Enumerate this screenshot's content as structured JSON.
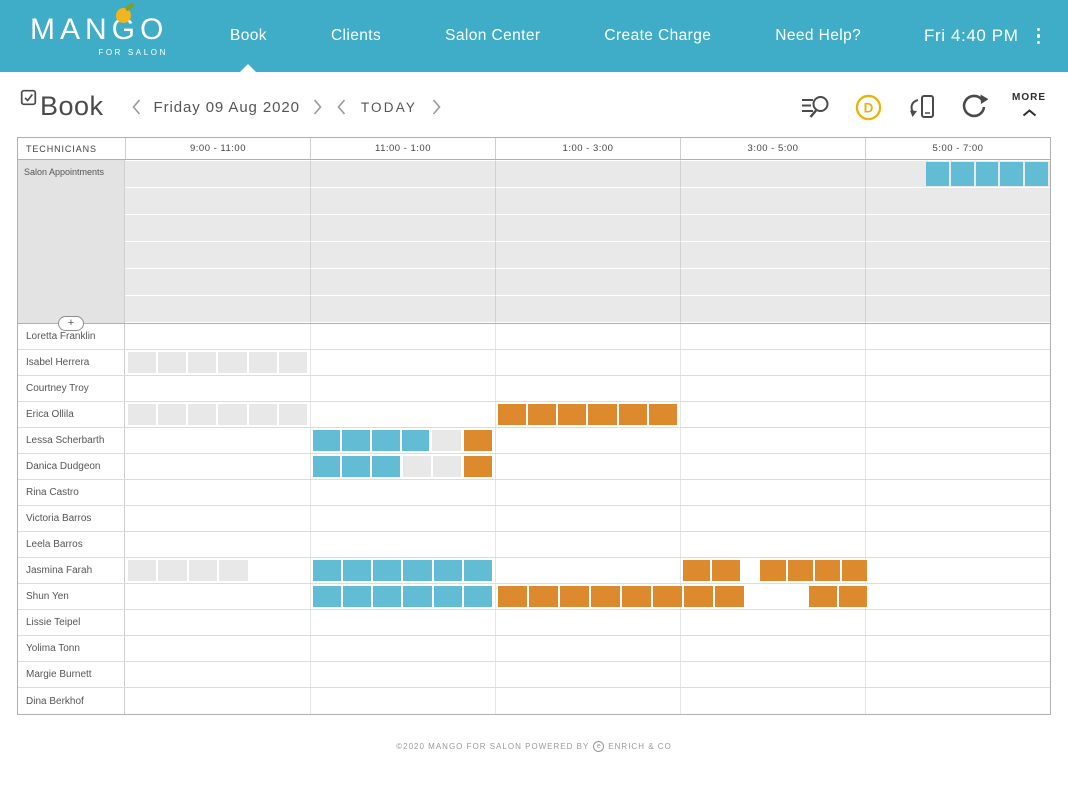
{
  "header": {
    "logo_text": "MANGO",
    "logo_sub": "FOR SALON",
    "nav": [
      {
        "label": "Book",
        "active": true
      },
      {
        "label": "Clients",
        "active": false
      },
      {
        "label": "Salon Center",
        "active": false
      },
      {
        "label": "Create Charge",
        "active": false
      },
      {
        "label": "Need Help?",
        "active": false
      }
    ],
    "clock": "Fri 4:40 PM"
  },
  "toolbar": {
    "title": "Book",
    "date": "Friday 09 Aug 2020",
    "today_label": "TODAY",
    "more_label": "MORE",
    "tool_icons": [
      "appointment-search-icon",
      "deals-d-icon",
      "card-reader-charge-icon",
      "refresh-icon"
    ]
  },
  "schedule": {
    "tech_header": "TECHNICIANS",
    "time_slots": [
      "9:00 - 11:00",
      "11:00 - 1:00",
      "1:00 - 3:00",
      "3:00 - 5:00",
      "5:00 - 7:00"
    ],
    "salon_row_label": "Salon Appointments",
    "add_label": "+",
    "salon_stripes": 6,
    "salon_blocks": [
      {
        "stripe": 0,
        "start": 86.6,
        "width": 13.2,
        "segments": 5,
        "color": "teal"
      }
    ],
    "technicians": [
      {
        "name": "Loretta Franklin",
        "blocks": []
      },
      {
        "name": "Isabel Herrera",
        "blocks": [
          {
            "start": 0.3,
            "width": 19.4,
            "segments": 6,
            "color": "gray"
          }
        ]
      },
      {
        "name": "Courtney Troy",
        "blocks": []
      },
      {
        "name": "Erica Ollila",
        "blocks": [
          {
            "start": 0.3,
            "width": 19.4,
            "segments": 6,
            "color": "gray"
          },
          {
            "start": 40.3,
            "width": 19.4,
            "segments": 6,
            "color": "orange"
          }
        ]
      },
      {
        "name": "Lessa Scherbarth",
        "blocks": [
          {
            "start": 20.3,
            "width": 12.6,
            "segments": 4,
            "color": "teal"
          },
          {
            "start": 33.2,
            "width": 3.1,
            "segments": 1,
            "color": "gray"
          },
          {
            "start": 36.6,
            "width": 3.1,
            "segments": 1,
            "color": "orange"
          }
        ]
      },
      {
        "name": "Danica Dudgeon",
        "blocks": [
          {
            "start": 20.3,
            "width": 9.4,
            "segments": 3,
            "color": "teal"
          },
          {
            "start": 30.0,
            "width": 6.3,
            "segments": 2,
            "color": "gray"
          },
          {
            "start": 36.6,
            "width": 3.1,
            "segments": 1,
            "color": "orange"
          }
        ]
      },
      {
        "name": "Rina Castro",
        "blocks": []
      },
      {
        "name": "Victoria Barros",
        "blocks": []
      },
      {
        "name": "Leela Barros",
        "blocks": []
      },
      {
        "name": "Jasmina Farah",
        "blocks": [
          {
            "start": 0.3,
            "width": 13.0,
            "segments": 4,
            "color": "gray"
          },
          {
            "start": 20.3,
            "width": 19.4,
            "segments": 6,
            "color": "teal"
          },
          {
            "start": 60.3,
            "width": 6.2,
            "segments": 2,
            "color": "orange"
          },
          {
            "start": 68.7,
            "width": 11.5,
            "segments": 4,
            "color": "orange"
          }
        ]
      },
      {
        "name": "Shun Yen",
        "blocks": [
          {
            "start": 20.3,
            "width": 19.4,
            "segments": 6,
            "color": "teal"
          },
          {
            "start": 40.3,
            "width": 26.6,
            "segments": 8,
            "color": "orange"
          },
          {
            "start": 73.9,
            "width": 6.3,
            "segments": 2,
            "color": "orange"
          }
        ]
      },
      {
        "name": "Lissie Teipel",
        "blocks": []
      },
      {
        "name": "Yolima Tonn",
        "blocks": []
      },
      {
        "name": "Margie Burnett",
        "blocks": []
      },
      {
        "name": "Dina Berkhof",
        "blocks": []
      }
    ]
  },
  "footer": {
    "text": "©2020 MANGO FOR SALON POWERED BY",
    "icon_letter": "e",
    "brand": "ENRICH & CO"
  },
  "colors": {
    "header_teal": "#3FADC8",
    "block_teal": "#62BCD4",
    "orange": "#DD8A2F",
    "gray_block": "#E8E8E8",
    "accent_yellow": "#E6B50C"
  }
}
